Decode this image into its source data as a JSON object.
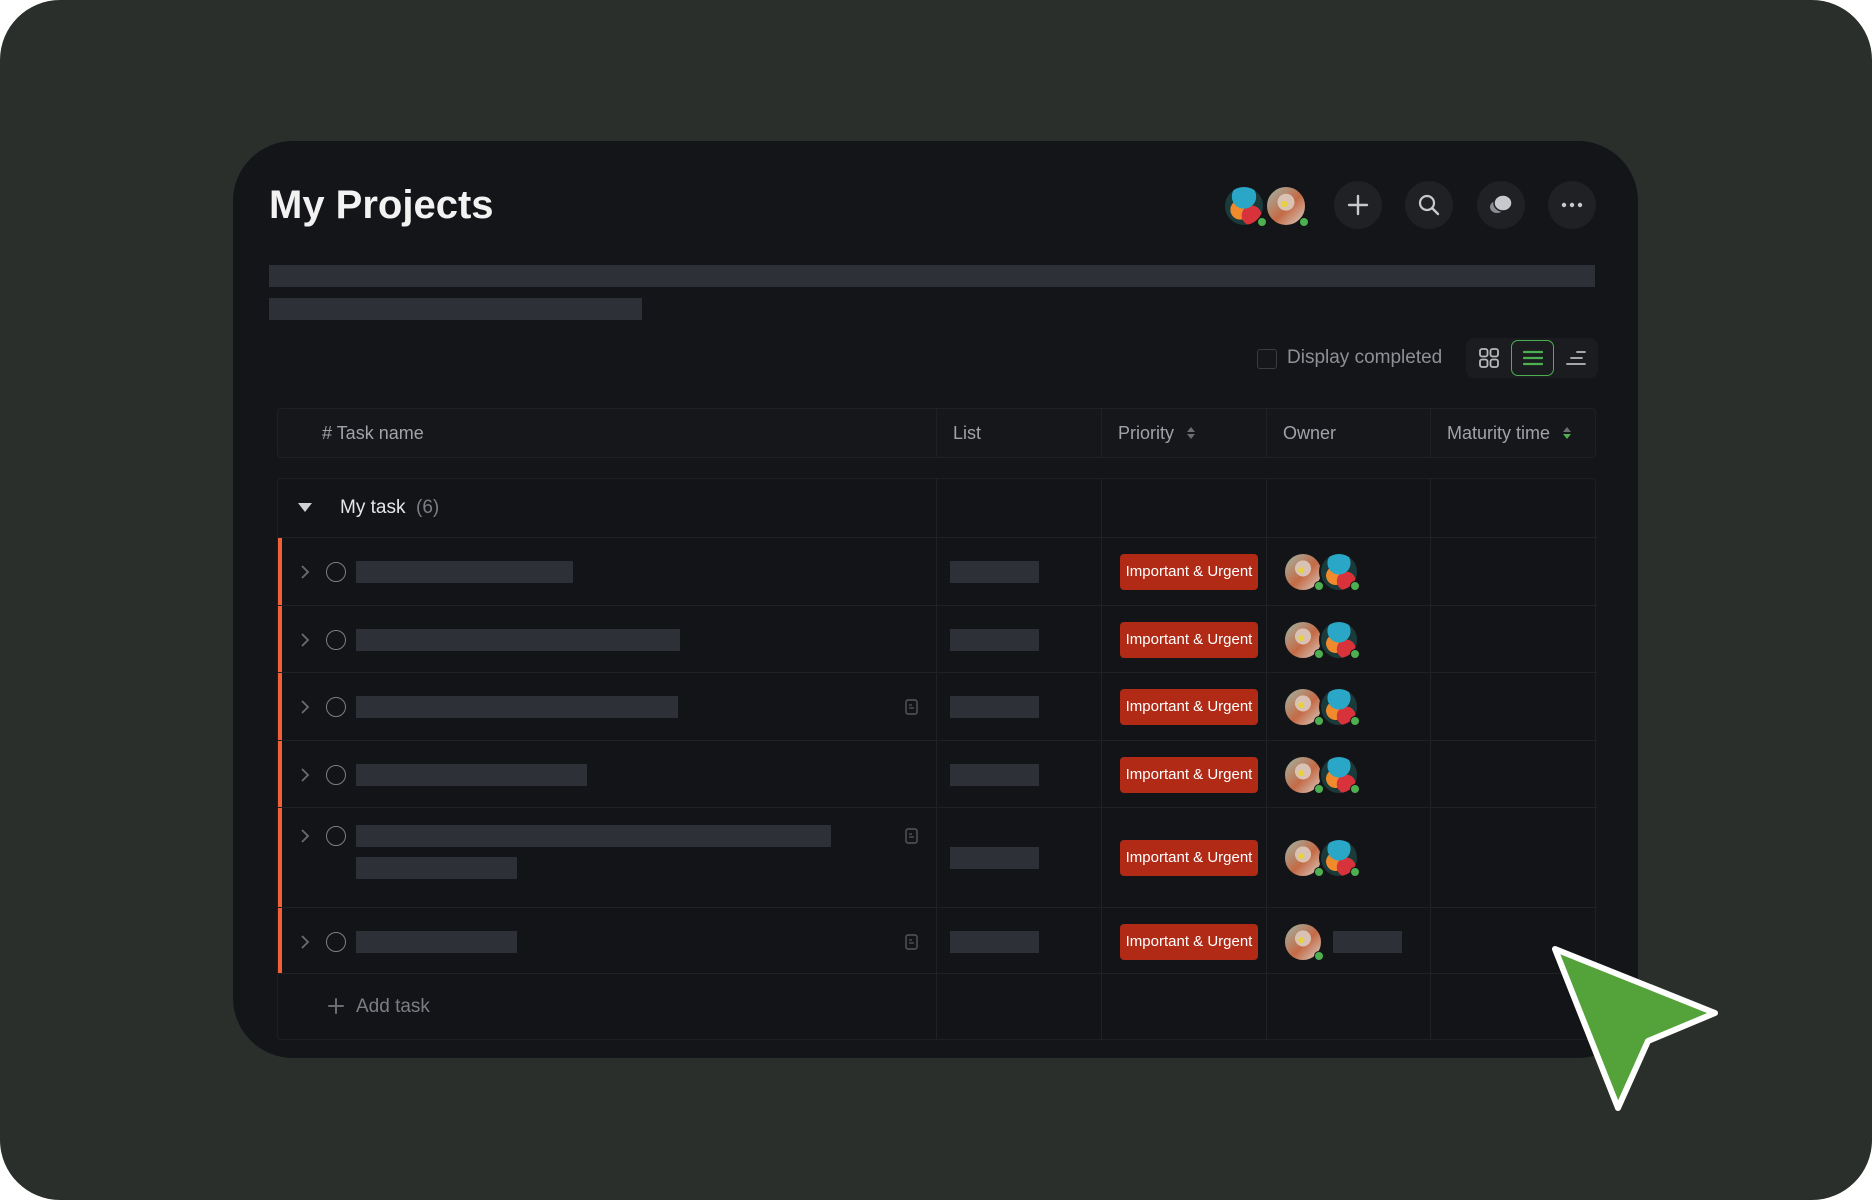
{
  "header": {
    "title": "My Projects",
    "collaborators": [
      "anime",
      "photo"
    ],
    "buttons": [
      "plus-icon",
      "search-icon",
      "chat-icon",
      "more-icon"
    ]
  },
  "toolbar": {
    "display_completed_label": "Display completed",
    "display_completed_checked": false,
    "views": [
      "grid",
      "list",
      "gantt"
    ],
    "active_view": "list",
    "accent": "#4caf50"
  },
  "table": {
    "columns": [
      "# Task name",
      "List",
      "Priority",
      "Owner",
      "Maturity time"
    ],
    "group": {
      "name": "My task",
      "count": "(6)"
    },
    "rows": [
      {
        "priority": "Important & Urgent",
        "owners": [
          "photo",
          "anime"
        ],
        "note": false
      },
      {
        "priority": "Important & Urgent",
        "owners": [
          "photo",
          "anime"
        ],
        "note": false
      },
      {
        "priority": "Important & Urgent",
        "owners": [
          "photo",
          "anime"
        ],
        "note": true
      },
      {
        "priority": "Important & Urgent",
        "owners": [
          "photo",
          "anime"
        ],
        "note": false
      },
      {
        "priority": "Important & Urgent",
        "owners": [
          "photo",
          "anime"
        ],
        "note": true
      },
      {
        "priority": "Important & Urgent",
        "owners": [
          "photo"
        ],
        "note": true
      }
    ],
    "add_task_label": "Add task",
    "priority_color": "#b02a16",
    "group_marker_color": "#f2603a"
  }
}
